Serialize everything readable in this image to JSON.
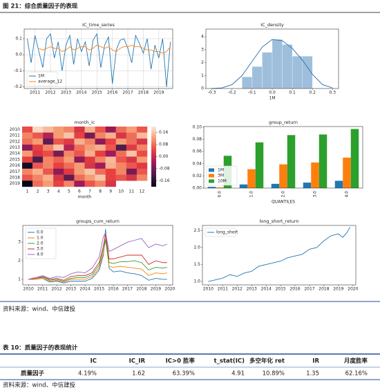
{
  "figure_caption": "图 21：综合质量因子的表现",
  "chart_data": [
    {
      "type": "line",
      "title": "IC_time_series",
      "x": [
        2010.5,
        2010.75,
        2011,
        2011.25,
        2011.5,
        2011.75,
        2012,
        2012.25,
        2012.5,
        2012.75,
        2013,
        2013.25,
        2013.5,
        2013.75,
        2014,
        2014.25,
        2014.5,
        2014.75,
        2015,
        2015.25,
        2015.5,
        2015.75,
        2016,
        2016.25,
        2016.5,
        2016.75,
        2017,
        2017.25,
        2017.5,
        2017.75,
        2018,
        2018.25,
        2018.5,
        2018.75,
        2019,
        2019.25,
        2019.5,
        2019.75
      ],
      "series": [
        {
          "name": "1M",
          "color": "#1f77b4",
          "values": [
            0.1,
            -0.05,
            0.12,
            0.02,
            -0.08,
            0.1,
            0.13,
            -0.02,
            0.08,
            -0.1,
            0.06,
            0.12,
            -0.06,
            0.1,
            0.02,
            0.08,
            -0.07,
            0.09,
            0.13,
            -0.08,
            0.06,
            0.11,
            -0.18,
            0.03,
            0.09,
            0.1,
            0.04,
            -0.05,
            0.12,
            0.07,
            0.01,
            0.1,
            -0.09,
            0.06,
            -0.02,
            0.1,
            -0.2,
            0.08
          ]
        },
        {
          "name": "average_12",
          "color": "#ff7f0e",
          "values": [
            null,
            null,
            null,
            0.04,
            0.03,
            0.04,
            0.05,
            0.04,
            0.04,
            0.02,
            0.03,
            0.05,
            0.03,
            0.04,
            0.05,
            0.05,
            0.03,
            0.04,
            0.06,
            0.05,
            0.04,
            0.05,
            0.03,
            0.02,
            0.04,
            0.05,
            0.05,
            0.06,
            0.05,
            0.05,
            0.04,
            0.03,
            0.03,
            0.02,
            0.02,
            0.01,
            0.02,
            0.05
          ]
        }
      ],
      "xlim": [
        2010.3,
        2019.9
      ],
      "xticks": [
        2011,
        2012,
        2013,
        2014,
        2015,
        2016,
        2017,
        2018,
        2019
      ],
      "ylim": [
        -0.21,
        0.16
      ],
      "yticks": [
        -0.2,
        -0.1,
        {
          "value": 0,
          "label": "0.0"
        },
        0.1
      ],
      "grid": true,
      "legend": "lower left"
    },
    {
      "type": "histogram",
      "title": "IC_density",
      "xlabel": "1M",
      "bins": [
        -0.15,
        -0.1,
        -0.05,
        0,
        0.05,
        0.1,
        0.15,
        0.2
      ],
      "counts": [
        0.9,
        1.7,
        2.8,
        3.8,
        3.4,
        2.5,
        2.5
      ],
      "color": "#9ebfdc",
      "kde_x": [
        -0.3,
        -0.25,
        -0.2,
        -0.15,
        -0.1,
        -0.05,
        0,
        0.05,
        0.1,
        0.15,
        0.2,
        0.25,
        0.3
      ],
      "kde_y": [
        0,
        0.05,
        0.3,
        1.0,
        2.1,
        3.2,
        3.8,
        3.7,
        3.1,
        2.2,
        1.1,
        0.3,
        0.05
      ],
      "line_color": "#3a79b0",
      "xlim": [
        -0.33,
        0.33
      ],
      "xticks": [
        -0.3,
        -0.2,
        -0.1,
        {
          "value": 0,
          "label": "0.0"
        },
        0.1,
        0.2,
        0.3
      ],
      "ylim": [
        0,
        4.6
      ],
      "yticks": [
        0,
        1,
        2,
        3,
        4
      ]
    },
    {
      "type": "heatmap",
      "title": "month_ic",
      "xlabel": "month",
      "categories": [
        "2010",
        "2011",
        "2012",
        "2013",
        "2014",
        "2015",
        "2016",
        "2017",
        "2018",
        "2019"
      ],
      "columns": [
        1,
        2,
        3,
        4,
        5,
        6,
        7,
        8,
        9,
        10,
        11,
        12
      ],
      "values": [
        [
          0.05,
          0.18,
          0.15,
          0.12,
          0.1,
          0.02,
          0.14,
          0.06,
          -0.05,
          0.08,
          0.12,
          0.06
        ],
        [
          0.1,
          0.06,
          -0.02,
          0.12,
          0.16,
          0.04,
          -0.08,
          0.1,
          0.14,
          0.02,
          0.08,
          0.15
        ],
        [
          0.08,
          0.12,
          -0.1,
          0.06,
          0.03,
          0.14,
          0.1,
          -0.06,
          0.04,
          0.12,
          0.08,
          0.02
        ],
        [
          -0.06,
          0.04,
          0.1,
          0.16,
          -0.02,
          0.08,
          0.12,
          0.14,
          0.06,
          -0.12,
          0.03,
          0.1
        ],
        [
          0.12,
          0.02,
          0.05,
          -0.08,
          0.1,
          0.06,
          0.14,
          0.04,
          -0.04,
          0.08,
          0.16,
          0.05
        ],
        [
          0.04,
          -0.12,
          0.1,
          0.07,
          0.12,
          -0.06,
          0.03,
          0.1,
          0.15,
          0.06,
          0.02,
          0.12
        ],
        [
          -0.18,
          0.06,
          0.1,
          0.04,
          0.08,
          0.12,
          0.02,
          -0.04,
          0.14,
          0.1,
          0.06,
          0.03
        ],
        [
          0.1,
          0.14,
          0.06,
          -0.06,
          0.03,
          0.12,
          0.16,
          0.08,
          0.04,
          0.1,
          -0.08,
          0.06
        ],
        [
          0.06,
          0.1,
          0.14,
          0.02,
          -0.1,
          0.08,
          0.12,
          0.16,
          0.04,
          0.06,
          0.02,
          0.1
        ],
        [
          -0.2,
          0.08,
          0.12,
          0.04,
          0.1,
          -0.04,
          0.06,
          0.1,
          0.02,
          null,
          null,
          null
        ]
      ],
      "zlim": [
        -0.2,
        0.2
      ],
      "colors": [
        "#03051a",
        "#4c1d4b",
        "#a11a5b",
        "#e83f3f",
        "#f69c73",
        "#faebdd"
      ],
      "colorbar_ticks": [
        0.16,
        0.08,
        {
          "value": 0,
          "label": "0.00"
        },
        -0.08,
        -0.16
      ]
    },
    {
      "type": "bar",
      "title": "group_return",
      "xlabel": "QUANTILES",
      "categories": [
        "0.0",
        "1.0",
        "2.0",
        "3.0",
        "4.0"
      ],
      "series": [
        {
          "name": "1M",
          "color": "#1f77b4",
          "values": [
            0.002,
            0.006,
            0.007,
            0.009,
            0.012
          ]
        },
        {
          "name": "3M",
          "color": "#ff7f0e",
          "values": [
            0.001,
            0.031,
            0.039,
            0.042,
            0.05
          ]
        },
        {
          "name": "10M",
          "color": "#2ca02c",
          "values": [
            0.053,
            0.075,
            0.087,
            0.088,
            0.097
          ]
        }
      ],
      "ylim": [
        0,
        0.101
      ],
      "yticks": [
        {
          "value": 0,
          "label": "0.00"
        },
        0.02,
        0.04,
        0.06,
        0.08,
        {
          "value": 0.1,
          "label": "0.10"
        }
      ],
      "legend": "lower left"
    },
    {
      "type": "line",
      "title": "groups_cum_return",
      "x": [
        2010,
        2010.5,
        2011,
        2011.5,
        2012,
        2012.5,
        2013,
        2013.5,
        2014,
        2014.5,
        2015,
        2015.3,
        2015.45,
        2015.7,
        2016,
        2016.5,
        2017,
        2017.5,
        2018,
        2018.5,
        2019,
        2019.5,
        2019.8
      ],
      "series": [
        {
          "name": "0.0",
          "color": "#1f77b4",
          "values": [
            1,
            1.0,
            1.05,
            0.85,
            0.9,
            0.8,
            0.9,
            0.9,
            0.9,
            1.05,
            1.5,
            2.3,
            3.7,
            1.6,
            1.4,
            1.45,
            1.35,
            1.3,
            1.2,
            0.95,
            1.05,
            1.0,
            1.0
          ]
        },
        {
          "name": "1.0",
          "color": "#ff7f0e",
          "values": [
            1,
            1.0,
            1.05,
            0.9,
            0.95,
            0.85,
            1.0,
            1.0,
            1.0,
            1.15,
            1.6,
            2.4,
            3.2,
            1.7,
            1.65,
            1.7,
            1.65,
            1.6,
            1.55,
            1.2,
            1.35,
            1.3,
            1.35
          ]
        },
        {
          "name": "2.0",
          "color": "#2ca02c",
          "values": [
            1,
            1.05,
            1.1,
            0.95,
            1.0,
            0.9,
            1.05,
            1.1,
            1.1,
            1.25,
            1.75,
            2.6,
            3.1,
            1.9,
            1.85,
            1.95,
            1.95,
            2.0,
            1.9,
            1.5,
            1.65,
            1.6,
            1.65
          ]
        },
        {
          "name": "3.0",
          "color": "#d62728",
          "values": [
            1,
            1.05,
            1.15,
            1.0,
            1.05,
            0.95,
            1.15,
            1.2,
            1.2,
            1.35,
            1.9,
            2.8,
            3.4,
            2.1,
            2.1,
            2.2,
            2.3,
            2.3,
            2.3,
            1.8,
            2.0,
            1.9,
            1.9
          ]
        },
        {
          "name": "4.0",
          "color": "#9467bd",
          "values": [
            1,
            1.1,
            1.2,
            1.05,
            1.15,
            1.1,
            1.3,
            1.4,
            1.35,
            1.6,
            2.2,
            3.3,
            3.5,
            2.5,
            2.6,
            2.8,
            3.0,
            3.1,
            3.2,
            2.7,
            2.9,
            2.8,
            2.9
          ]
        }
      ],
      "xlim": [
        2009.6,
        2020.2
      ],
      "xticks": [
        2010,
        2011,
        2012,
        2013,
        2014,
        2015,
        2016,
        2017,
        2018,
        2019,
        2020
      ],
      "ylim": [
        0.7,
        3.9
      ],
      "yticks": [
        1,
        2,
        3
      ],
      "legend": "upper left"
    },
    {
      "type": "line",
      "title": "long_short_return",
      "x": [
        2010,
        2010.5,
        2011,
        2011.5,
        2012,
        2012.5,
        2013,
        2013.5,
        2014,
        2014.5,
        2015,
        2015.5,
        2016,
        2016.5,
        2017,
        2017.5,
        2018,
        2018.5,
        2019,
        2019.3,
        2019.6,
        2019.8
      ],
      "series": [
        {
          "name": "long_short",
          "color": "#1f77b4",
          "values": [
            1.0,
            1.05,
            1.1,
            1.2,
            1.15,
            1.25,
            1.3,
            1.45,
            1.5,
            1.55,
            1.6,
            1.7,
            1.75,
            1.8,
            1.95,
            2.0,
            2.2,
            2.35,
            2.4,
            2.3,
            2.45,
            2.6
          ]
        }
      ],
      "xlim": [
        2009.6,
        2020.2
      ],
      "xticks": [
        2010,
        2011,
        2012,
        2013,
        2014,
        2015,
        2016,
        2017,
        2018,
        2019,
        2020
      ],
      "ylim": [
        0.9,
        2.65
      ],
      "yticks": [
        {
          "value": 1,
          "label": "1.0"
        },
        1.5,
        {
          "value": 2,
          "label": "2.0"
        },
        2.5
      ],
      "legend": "upper left"
    }
  ],
  "source_note": "资料来源：wind、中信建投",
  "table_caption": "表 10：质量因子的表现统计",
  "table": {
    "columns": [
      "IC",
      "IC_IR",
      "IC>0 胜率",
      "t_stat(IC)",
      "多空年化 ret",
      "IR",
      "月度胜率"
    ],
    "rows": [
      {
        "label": "质量因子",
        "cells": [
          "4.19%",
          "1.62",
          "63.39%",
          "4.91",
          "10.89%",
          "1.35",
          "62.16%"
        ]
      }
    ]
  },
  "table_source_note": "资料来源：wind、中信建投"
}
